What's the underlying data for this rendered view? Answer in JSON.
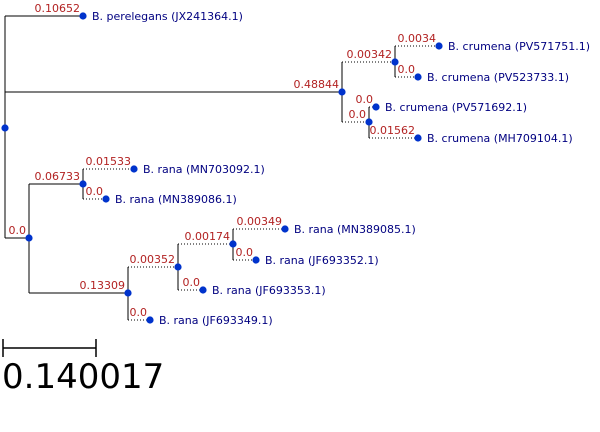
{
  "tree": {
    "nodes": [
      {
        "id": "root",
        "branch_length": null
      },
      {
        "id": "leaf_perelegans",
        "label": "B. perelegans (JX241364.1)",
        "branch_length": "0.10652"
      },
      {
        "id": "clade_crumena",
        "branch_length": "0.48844"
      },
      {
        "id": "sub_crumena_a",
        "branch_length": "0.00342"
      },
      {
        "id": "leaf_pv571751",
        "label": "B. crumena (PV571751.1)",
        "branch_length": "0.0034"
      },
      {
        "id": "leaf_pv523733",
        "label": "B. crumena (PV523733.1)",
        "branch_length": "0.0"
      },
      {
        "id": "sub_crumena_b",
        "branch_length": "0.0"
      },
      {
        "id": "leaf_pv571692",
        "label": "B. crumena (PV571692.1)",
        "branch_length": "0.0"
      },
      {
        "id": "leaf_mh709104",
        "label": "B. crumena (MH709104.1)",
        "branch_length": "0.01562"
      },
      {
        "id": "clade_rana",
        "branch_length": "0.0"
      },
      {
        "id": "sub_rana_a",
        "branch_length": "0.06733"
      },
      {
        "id": "leaf_mn703092",
        "label": "B. rana (MN703092.1)",
        "branch_length": "0.01533"
      },
      {
        "id": "leaf_mn389086",
        "label": "B. rana (MN389086.1)",
        "branch_length": "0.0"
      },
      {
        "id": "sub_rana_b",
        "branch_length": "0.13309"
      },
      {
        "id": "sub_rana_c",
        "branch_length": "0.00352"
      },
      {
        "id": "sub_rana_d",
        "branch_length": "0.00174"
      },
      {
        "id": "leaf_mn389085",
        "label": "B. rana (MN389085.1)",
        "branch_length": "0.00349"
      },
      {
        "id": "leaf_jf693352",
        "label": "B. rana (JF693352.1)",
        "branch_length": "0.0"
      },
      {
        "id": "leaf_jf693353",
        "label": "B. rana (JF693353.1)",
        "branch_length": "0.0"
      },
      {
        "id": "leaf_jf693349",
        "label": "B. rana (JF693349.1)",
        "branch_length": "0.0"
      }
    ]
  },
  "scale_bar": {
    "label": "0.140017"
  },
  "colors": {
    "branch_length_text": "#b22222",
    "leaf_text": "#000080",
    "node_dot": "#0033cc"
  }
}
